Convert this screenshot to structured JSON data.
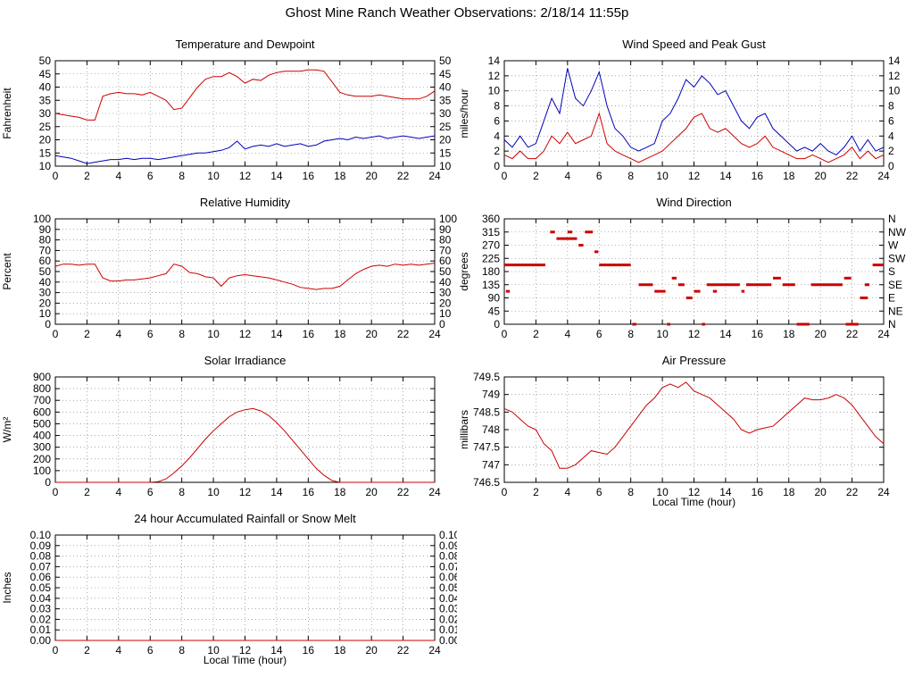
{
  "page_title": "Ghost Mine Ranch Weather Observations: 2/18/14 11:55p",
  "colors": {
    "series_red": "#cc0000",
    "series_blue": "#0000bb",
    "axis": "#000000",
    "grid": "#777777"
  },
  "x_axis": {
    "label": "Local Time (hour)",
    "ticks": [
      0,
      2,
      4,
      6,
      8,
      10,
      12,
      14,
      16,
      18,
      20,
      22,
      24
    ],
    "range": [
      0,
      24
    ]
  },
  "chart_data": [
    {
      "id": "temperature-dewpoint",
      "type": "line",
      "title": "Temperature and Dewpoint",
      "ylabel": "Fahrenheit",
      "xlabel": "",
      "xlim": [
        0,
        24
      ],
      "ylim": [
        10,
        50
      ],
      "xticks": [
        0,
        2,
        4,
        6,
        8,
        10,
        12,
        14,
        16,
        18,
        20,
        22,
        24
      ],
      "yticks": [
        10,
        15,
        20,
        25,
        30,
        35,
        40,
        45,
        50
      ],
      "ytick_labels": [
        "10",
        "15",
        "20",
        "25",
        "30",
        "35",
        "40",
        "45",
        "50"
      ],
      "ytick_labels_right": [
        "10",
        "15",
        "20",
        "25",
        "30",
        "35",
        "40",
        "45",
        "50"
      ],
      "series": [
        {
          "name": "temperature",
          "color": "#cc0000",
          "x_start": 0,
          "x_step": 0.5,
          "y": [
            30,
            29.5,
            29,
            28.5,
            27.5,
            27.5,
            36.5,
            37.5,
            38,
            37.5,
            37.5,
            37,
            38,
            36.5,
            35,
            31.5,
            32,
            36,
            40,
            43,
            44,
            44,
            45.5,
            44,
            41.5,
            43,
            42.5,
            44.5,
            45.5,
            46,
            46,
            46,
            46.5,
            46.5,
            46,
            42,
            38,
            37,
            36.5,
            36.5,
            36.5,
            37,
            36.5,
            36,
            35.5,
            35.5,
            35.5,
            36.5,
            38.5
          ]
        },
        {
          "name": "dewpoint",
          "color": "#0000bb",
          "x_start": 0,
          "x_step": 0.5,
          "y": [
            14,
            13.5,
            13,
            12,
            11,
            11.5,
            12,
            12.5,
            12.5,
            13,
            12.5,
            13,
            13,
            12.5,
            13,
            13.5,
            14,
            14.5,
            15,
            15,
            15.5,
            16,
            17,
            19.5,
            16.5,
            17.5,
            18,
            17.5,
            18.5,
            17.5,
            18,
            18.5,
            17.5,
            18,
            19.5,
            20,
            20.5,
            20,
            21,
            20.5,
            21,
            21.5,
            20.5,
            21,
            21.5,
            21,
            20.5,
            21,
            21.5
          ]
        }
      ]
    },
    {
      "id": "wind-speed-gust",
      "type": "line",
      "title": "Wind Speed and Peak Gust",
      "ylabel": "miles/hour",
      "xlabel": "",
      "xlim": [
        0,
        24
      ],
      "ylim": [
        0,
        14
      ],
      "xticks": [
        0,
        2,
        4,
        6,
        8,
        10,
        12,
        14,
        16,
        18,
        20,
        22,
        24
      ],
      "yticks": [
        0,
        2,
        4,
        6,
        8,
        10,
        12,
        14
      ],
      "ytick_labels": [
        "0",
        "2",
        "4",
        "6",
        "8",
        "10",
        "12",
        "14"
      ],
      "ytick_labels_right": [
        "0",
        "2",
        "4",
        "6",
        "8",
        "10",
        "12",
        "14"
      ],
      "series": [
        {
          "name": "wind-speed",
          "color": "#cc0000",
          "x_start": 0,
          "x_step": 0.5,
          "y": [
            1.5,
            1,
            2,
            1,
            1,
            2,
            4,
            3,
            4.5,
            3,
            3.5,
            4,
            7,
            3,
            2,
            1.5,
            1,
            0.5,
            1,
            1.5,
            2,
            3,
            4,
            5,
            6.5,
            7,
            5,
            4.5,
            5,
            4,
            3,
            2.5,
            3,
            4,
            2.5,
            2,
            1.5,
            1,
            1,
            1.5,
            1,
            0.5,
            1,
            1.5,
            2.5,
            1,
            2,
            1,
            1.5
          ]
        },
        {
          "name": "peak-gust",
          "color": "#0000bb",
          "x_start": 0,
          "x_step": 0.5,
          "y": [
            3.5,
            2.5,
            4,
            2.5,
            3,
            6,
            9,
            7,
            13,
            9,
            8,
            10,
            12.5,
            8,
            5,
            4,
            2.5,
            2,
            2.5,
            3,
            6,
            7,
            9,
            11.5,
            10.5,
            12,
            11,
            9.5,
            10,
            8,
            6,
            5,
            6.5,
            7,
            5,
            4,
            3,
            2,
            2.5,
            2,
            3,
            2,
            1.5,
            2.5,
            4,
            2,
            3.5,
            2,
            2.5
          ]
        }
      ]
    },
    {
      "id": "relative-humidity",
      "type": "line",
      "title": "Relative Humidity",
      "ylabel": "Percent",
      "xlabel": "",
      "xlim": [
        0,
        24
      ],
      "ylim": [
        0,
        100
      ],
      "xticks": [
        0,
        2,
        4,
        6,
        8,
        10,
        12,
        14,
        16,
        18,
        20,
        22,
        24
      ],
      "yticks": [
        0,
        10,
        20,
        30,
        40,
        50,
        60,
        70,
        80,
        90,
        100
      ],
      "ytick_labels": [
        "0",
        "10",
        "20",
        "30",
        "40",
        "50",
        "60",
        "70",
        "80",
        "90",
        "100"
      ],
      "ytick_labels_right": [
        "0",
        "10",
        "20",
        "30",
        "40",
        "50",
        "60",
        "70",
        "80",
        "90",
        "100"
      ],
      "series": [
        {
          "name": "humidity",
          "color": "#cc0000",
          "x_start": 0,
          "x_step": 0.5,
          "y": [
            55,
            57,
            57,
            56,
            57,
            57,
            44,
            41,
            41,
            42,
            42,
            43,
            44,
            46,
            48,
            57,
            55,
            49,
            48,
            45,
            44,
            36,
            44,
            46,
            47,
            46,
            45,
            44,
            42,
            40,
            38,
            35,
            34,
            33,
            34,
            34,
            36,
            42,
            48,
            52,
            55,
            56,
            55,
            57,
            56,
            57,
            56,
            57,
            58
          ]
        }
      ]
    },
    {
      "id": "wind-direction",
      "type": "scatter",
      "title": "Wind Direction",
      "ylabel": "degrees",
      "xlabel": "",
      "xlim": [
        0,
        24
      ],
      "ylim": [
        0,
        360
      ],
      "xticks": [
        0,
        2,
        4,
        6,
        8,
        10,
        12,
        14,
        16,
        18,
        20,
        22,
        24
      ],
      "yticks": [
        0,
        45,
        90,
        135,
        180,
        225,
        270,
        315,
        360
      ],
      "ytick_labels": [
        "0",
        "45",
        "90",
        "135",
        "180",
        "225",
        "270",
        "315",
        "360"
      ],
      "ytick_labels_right": [
        "N",
        "NE",
        "E",
        "SE",
        "S",
        "SW",
        "W",
        "NW",
        "N"
      ],
      "series": [
        {
          "name": "direction",
          "color": "#cc0000",
          "segments": [
            [
              0.1,
              0.35,
              112.5
            ],
            [
              0,
              2.6,
              202.5
            ],
            [
              2.9,
              3.2,
              315
            ],
            [
              3.3,
              4.6,
              292.5
            ],
            [
              4.0,
              4.3,
              315
            ],
            [
              4.7,
              5.0,
              270
            ],
            [
              5.1,
              5.6,
              315
            ],
            [
              5.7,
              5.95,
              247.5
            ],
            [
              6.0,
              8.0,
              202.5
            ],
            [
              8.1,
              8.35,
              0
            ],
            [
              8.5,
              9.4,
              135
            ],
            [
              9.5,
              10.2,
              112.5
            ],
            [
              10.3,
              10.5,
              0
            ],
            [
              10.6,
              10.9,
              157.5
            ],
            [
              11.0,
              11.4,
              135
            ],
            [
              11.5,
              11.9,
              90
            ],
            [
              12.0,
              12.4,
              112.5
            ],
            [
              12.5,
              12.7,
              0
            ],
            [
              12.8,
              14.9,
              135
            ],
            [
              13.2,
              13.45,
              112.5
            ],
            [
              15.0,
              15.2,
              112.5
            ],
            [
              15.3,
              16.9,
              135
            ],
            [
              17.0,
              17.5,
              157.5
            ],
            [
              17.6,
              18.4,
              135
            ],
            [
              18.5,
              19.3,
              0
            ],
            [
              19.4,
              21.4,
              135
            ],
            [
              21.5,
              21.95,
              157.5
            ],
            [
              21.6,
              22.4,
              0
            ],
            [
              22.5,
              23.0,
              90
            ],
            [
              22.8,
              23.1,
              135
            ],
            [
              23.3,
              24.0,
              202.5
            ]
          ]
        }
      ]
    },
    {
      "id": "solar-irradiance",
      "type": "line",
      "title": "Solar Irradiance",
      "ylabel": "W/m²",
      "xlabel": "",
      "xlim": [
        0,
        24
      ],
      "ylim": [
        0,
        900
      ],
      "xticks": [
        0,
        2,
        4,
        6,
        8,
        10,
        12,
        14,
        16,
        18,
        20,
        22,
        24
      ],
      "yticks": [
        0,
        100,
        200,
        300,
        400,
        500,
        600,
        700,
        800,
        900
      ],
      "ytick_labels": [
        "0",
        "100",
        "200",
        "300",
        "400",
        "500",
        "600",
        "700",
        "800",
        "900"
      ],
      "ytick_labels_right": null,
      "series": [
        {
          "name": "irradiance",
          "color": "#cc0000",
          "x_start": 0,
          "x_step": 0.5,
          "y": [
            0,
            0,
            0,
            0,
            0,
            0,
            0,
            0,
            0,
            0,
            0,
            0,
            0,
            5,
            30,
            80,
            140,
            210,
            290,
            370,
            440,
            500,
            560,
            600,
            620,
            630,
            610,
            570,
            510,
            440,
            360,
            280,
            200,
            120,
            60,
            15,
            0,
            0,
            0,
            0,
            0,
            0,
            0,
            0,
            0,
            0,
            0,
            0,
            0
          ]
        }
      ]
    },
    {
      "id": "air-pressure",
      "type": "line",
      "title": "Air Pressure",
      "ylabel": "millibars",
      "xlabel": "Local Time (hour)",
      "xlim": [
        0,
        24
      ],
      "ylim": [
        746.5,
        749.5
      ],
      "xticks": [
        0,
        2,
        4,
        6,
        8,
        10,
        12,
        14,
        16,
        18,
        20,
        22,
        24
      ],
      "yticks": [
        746.5,
        747,
        747.5,
        748,
        748.5,
        749,
        749.5
      ],
      "ytick_labels": [
        "746.5",
        "747",
        "747.5",
        "748",
        "748.5",
        "749",
        "749.5"
      ],
      "ytick_labels_right": null,
      "series": [
        {
          "name": "pressure",
          "color": "#cc0000",
          "x_start": 0,
          "x_step": 0.5,
          "y": [
            748.6,
            748.5,
            748.3,
            748.1,
            748.0,
            747.6,
            747.4,
            746.9,
            746.9,
            747.0,
            747.2,
            747.4,
            747.35,
            747.3,
            747.5,
            747.8,
            748.1,
            748.4,
            748.7,
            748.9,
            749.2,
            749.3,
            749.2,
            749.35,
            749.1,
            749.0,
            748.9,
            748.7,
            748.5,
            748.3,
            748.0,
            747.9,
            748.0,
            748.05,
            748.1,
            748.3,
            748.5,
            748.7,
            748.9,
            748.85,
            748.85,
            748.9,
            749.0,
            748.9,
            748.7,
            748.4,
            748.1,
            747.8,
            747.6
          ]
        }
      ]
    },
    {
      "id": "rainfall",
      "type": "line",
      "title": "24 hour Accumulated Rainfall or Snow Melt",
      "ylabel": "Inches",
      "xlabel": "Local Time (hour)",
      "xlim": [
        0,
        24
      ],
      "ylim": [
        0,
        0.1
      ],
      "xticks": [
        0,
        2,
        4,
        6,
        8,
        10,
        12,
        14,
        16,
        18,
        20,
        22,
        24
      ],
      "yticks": [
        0,
        0.01,
        0.02,
        0.03,
        0.04,
        0.05,
        0.06,
        0.07,
        0.08,
        0.09,
        0.1
      ],
      "ytick_labels": [
        "0.00",
        "0.01",
        "0.02",
        "0.03",
        "0.04",
        "0.05",
        "0.06",
        "0.07",
        "0.08",
        "0.09",
        "0.10"
      ],
      "ytick_labels_right": [
        "0.00",
        "0.01",
        "0.02",
        "0.03",
        "0.04",
        "0.05",
        "0.06",
        "0.07",
        "0.08",
        "0.09",
        "0.10"
      ],
      "series": [
        {
          "name": "rainfall",
          "color": "#cc0000",
          "x_start": 0,
          "x_step": 24,
          "y": [
            0,
            0
          ]
        }
      ]
    }
  ]
}
